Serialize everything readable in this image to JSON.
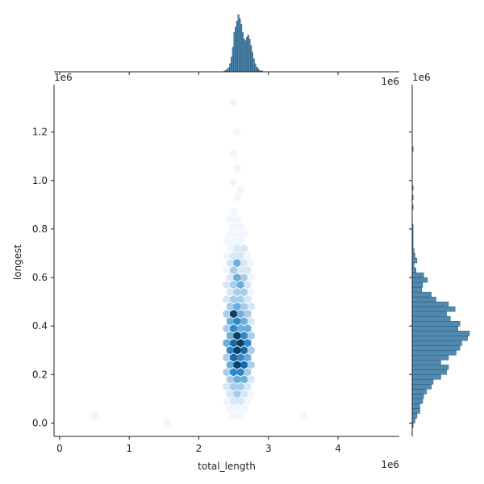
{
  "chart_data": {
    "type": "hexbin-joint",
    "xlabel": "total_length",
    "ylabel": "longest",
    "x_offset_label": "1e6",
    "y_offset_label": "1e6",
    "xlim": [
      -0.08,
      4.88
    ],
    "ylim": [
      -0.055,
      1.395
    ],
    "x_ticks": [
      0,
      1,
      2,
      3,
      4
    ],
    "x_tick_labels": [
      "0",
      "1",
      "2",
      "3",
      "4"
    ],
    "y_ticks": [
      0.0,
      0.2,
      0.4,
      0.6,
      0.8,
      1.0,
      1.2
    ],
    "y_tick_labels": [
      "0.0",
      "0.2",
      "0.4",
      "0.6",
      "0.8",
      "1.0",
      "1.2"
    ],
    "color": "#3274a1",
    "hex_colors": [
      "#f0f6fb",
      "#d6e7f5",
      "#a9cde9",
      "#6aaedb",
      "#2f88c8",
      "#1a68a6",
      "#0d3e63",
      "#061d30"
    ],
    "hexbins": [
      {
        "x": 2.5,
        "y": 0.03,
        "v": 1
      },
      {
        "x": 2.6,
        "y": 0.03,
        "v": 1
      },
      {
        "x": 2.55,
        "y": 0.06,
        "v": 1
      },
      {
        "x": 2.45,
        "y": 0.06,
        "v": 1
      },
      {
        "x": 2.65,
        "y": 0.06,
        "v": 1
      },
      {
        "x": 2.4,
        "y": 0.09,
        "v": 1
      },
      {
        "x": 2.5,
        "y": 0.09,
        "v": 2
      },
      {
        "x": 2.6,
        "y": 0.09,
        "v": 2
      },
      {
        "x": 2.7,
        "y": 0.09,
        "v": 1
      },
      {
        "x": 2.45,
        "y": 0.12,
        "v": 2
      },
      {
        "x": 2.55,
        "y": 0.12,
        "v": 3
      },
      {
        "x": 2.65,
        "y": 0.12,
        "v": 2
      },
      {
        "x": 2.75,
        "y": 0.12,
        "v": 1
      },
      {
        "x": 2.4,
        "y": 0.15,
        "v": 2
      },
      {
        "x": 2.5,
        "y": 0.15,
        "v": 3
      },
      {
        "x": 2.6,
        "y": 0.15,
        "v": 3
      },
      {
        "x": 2.7,
        "y": 0.15,
        "v": 2
      },
      {
        "x": 2.45,
        "y": 0.18,
        "v": 3
      },
      {
        "x": 2.55,
        "y": 0.18,
        "v": 4
      },
      {
        "x": 2.65,
        "y": 0.18,
        "v": 4
      },
      {
        "x": 2.75,
        "y": 0.18,
        "v": 2
      },
      {
        "x": 2.4,
        "y": 0.21,
        "v": 3
      },
      {
        "x": 2.5,
        "y": 0.21,
        "v": 5
      },
      {
        "x": 2.6,
        "y": 0.21,
        "v": 5
      },
      {
        "x": 2.7,
        "y": 0.21,
        "v": 3
      },
      {
        "x": 2.45,
        "y": 0.24,
        "v": 4
      },
      {
        "x": 2.55,
        "y": 0.24,
        "v": 7
      },
      {
        "x": 2.65,
        "y": 0.24,
        "v": 6
      },
      {
        "x": 2.75,
        "y": 0.24,
        "v": 3
      },
      {
        "x": 2.4,
        "y": 0.27,
        "v": 3
      },
      {
        "x": 2.5,
        "y": 0.27,
        "v": 6
      },
      {
        "x": 2.6,
        "y": 0.27,
        "v": 5
      },
      {
        "x": 2.7,
        "y": 0.27,
        "v": 4
      },
      {
        "x": 2.45,
        "y": 0.3,
        "v": 5
      },
      {
        "x": 2.55,
        "y": 0.3,
        "v": 7
      },
      {
        "x": 2.65,
        "y": 0.3,
        "v": 6
      },
      {
        "x": 2.75,
        "y": 0.3,
        "v": 3
      },
      {
        "x": 2.4,
        "y": 0.33,
        "v": 4
      },
      {
        "x": 2.5,
        "y": 0.33,
        "v": 6
      },
      {
        "x": 2.6,
        "y": 0.33,
        "v": 7
      },
      {
        "x": 2.7,
        "y": 0.33,
        "v": 5
      },
      {
        "x": 2.45,
        "y": 0.36,
        "v": 4
      },
      {
        "x": 2.55,
        "y": 0.36,
        "v": 7
      },
      {
        "x": 2.65,
        "y": 0.36,
        "v": 5
      },
      {
        "x": 2.75,
        "y": 0.36,
        "v": 3
      },
      {
        "x": 2.4,
        "y": 0.39,
        "v": 3
      },
      {
        "x": 2.5,
        "y": 0.39,
        "v": 5
      },
      {
        "x": 2.6,
        "y": 0.39,
        "v": 4
      },
      {
        "x": 2.7,
        "y": 0.39,
        "v": 4
      },
      {
        "x": 2.45,
        "y": 0.42,
        "v": 4
      },
      {
        "x": 2.55,
        "y": 0.42,
        "v": 5
      },
      {
        "x": 2.65,
        "y": 0.42,
        "v": 4
      },
      {
        "x": 2.75,
        "y": 0.42,
        "v": 2
      },
      {
        "x": 2.4,
        "y": 0.45,
        "v": 3
      },
      {
        "x": 2.5,
        "y": 0.45,
        "v": 7
      },
      {
        "x": 2.6,
        "y": 0.45,
        "v": 4
      },
      {
        "x": 2.7,
        "y": 0.45,
        "v": 3
      },
      {
        "x": 2.45,
        "y": 0.48,
        "v": 3
      },
      {
        "x": 2.55,
        "y": 0.48,
        "v": 4
      },
      {
        "x": 2.65,
        "y": 0.48,
        "v": 3
      },
      {
        "x": 2.75,
        "y": 0.48,
        "v": 2
      },
      {
        "x": 2.4,
        "y": 0.51,
        "v": 2
      },
      {
        "x": 2.5,
        "y": 0.51,
        "v": 3
      },
      {
        "x": 2.6,
        "y": 0.51,
        "v": 3
      },
      {
        "x": 2.7,
        "y": 0.51,
        "v": 2
      },
      {
        "x": 2.45,
        "y": 0.54,
        "v": 2
      },
      {
        "x": 2.55,
        "y": 0.54,
        "v": 3
      },
      {
        "x": 2.65,
        "y": 0.54,
        "v": 3
      },
      {
        "x": 2.75,
        "y": 0.54,
        "v": 1
      },
      {
        "x": 2.4,
        "y": 0.57,
        "v": 2
      },
      {
        "x": 2.5,
        "y": 0.57,
        "v": 3
      },
      {
        "x": 2.6,
        "y": 0.57,
        "v": 4
      },
      {
        "x": 2.7,
        "y": 0.57,
        "v": 2
      },
      {
        "x": 2.45,
        "y": 0.6,
        "v": 2
      },
      {
        "x": 2.55,
        "y": 0.6,
        "v": 4
      },
      {
        "x": 2.65,
        "y": 0.6,
        "v": 3
      },
      {
        "x": 2.75,
        "y": 0.6,
        "v": 1
      },
      {
        "x": 2.4,
        "y": 0.63,
        "v": 1
      },
      {
        "x": 2.5,
        "y": 0.63,
        "v": 3
      },
      {
        "x": 2.6,
        "y": 0.63,
        "v": 2
      },
      {
        "x": 2.7,
        "y": 0.63,
        "v": 2
      },
      {
        "x": 2.45,
        "y": 0.66,
        "v": 2
      },
      {
        "x": 2.55,
        "y": 0.66,
        "v": 4
      },
      {
        "x": 2.65,
        "y": 0.66,
        "v": 2
      },
      {
        "x": 2.75,
        "y": 0.66,
        "v": 1
      },
      {
        "x": 2.4,
        "y": 0.69,
        "v": 1
      },
      {
        "x": 2.5,
        "y": 0.69,
        "v": 2
      },
      {
        "x": 2.6,
        "y": 0.69,
        "v": 2
      },
      {
        "x": 2.7,
        "y": 0.69,
        "v": 1
      },
      {
        "x": 2.45,
        "y": 0.72,
        "v": 1
      },
      {
        "x": 2.55,
        "y": 0.72,
        "v": 2
      },
      {
        "x": 2.65,
        "y": 0.72,
        "v": 2
      },
      {
        "x": 2.5,
        "y": 0.75,
        "v": 1
      },
      {
        "x": 2.6,
        "y": 0.75,
        "v": 1
      },
      {
        "x": 2.4,
        "y": 0.75,
        "v": 1
      },
      {
        "x": 2.55,
        "y": 0.78,
        "v": 1
      },
      {
        "x": 2.65,
        "y": 0.78,
        "v": 1
      },
      {
        "x": 2.45,
        "y": 0.78,
        "v": 1
      },
      {
        "x": 2.5,
        "y": 0.81,
        "v": 1
      },
      {
        "x": 2.6,
        "y": 0.81,
        "v": 1
      },
      {
        "x": 2.55,
        "y": 0.84,
        "v": 1
      },
      {
        "x": 2.45,
        "y": 0.84,
        "v": 1
      },
      {
        "x": 2.5,
        "y": 0.87,
        "v": 1
      },
      {
        "x": 2.55,
        "y": 0.93,
        "v": 1
      },
      {
        "x": 2.6,
        "y": 0.96,
        "v": 1
      },
      {
        "x": 2.5,
        "y": 0.99,
        "v": 1
      },
      {
        "x": 2.55,
        "y": 1.05,
        "v": 1
      },
      {
        "x": 2.5,
        "y": 1.11,
        "v": 1
      },
      {
        "x": 2.55,
        "y": 1.2,
        "v": 1
      },
      {
        "x": 2.5,
        "y": 1.32,
        "v": 1
      },
      {
        "x": 0.5,
        "y": 0.03,
        "v": 1
      },
      {
        "x": 1.55,
        "y": 0.0,
        "v": 1
      },
      {
        "x": 3.5,
        "y": 0.03,
        "v": 1
      }
    ],
    "top_hist": {
      "bin_starts": [
        2.36,
        2.38,
        2.4,
        2.42,
        2.44,
        2.46,
        2.48,
        2.5,
        2.52,
        2.54,
        2.56,
        2.58,
        2.6,
        2.62,
        2.64,
        2.66,
        2.68,
        2.7,
        2.72,
        2.74,
        2.76,
        2.78,
        2.8,
        2.82,
        2.84,
        2.86,
        2.88,
        2.9
      ],
      "bin_width": 0.02,
      "counts": [
        1,
        2,
        3,
        5,
        10,
        18,
        30,
        48,
        55,
        62,
        70,
        65,
        58,
        48,
        40,
        38,
        42,
        45,
        40,
        32,
        24,
        16,
        10,
        6,
        4,
        2,
        1,
        1
      ]
    },
    "right_hist": {
      "bin_starts": [
        -0.02,
        0.0,
        0.02,
        0.04,
        0.06,
        0.08,
        0.1,
        0.12,
        0.14,
        0.16,
        0.18,
        0.2,
        0.22,
        0.24,
        0.26,
        0.28,
        0.3,
        0.32,
        0.34,
        0.36,
        0.38,
        0.4,
        0.42,
        0.44,
        0.46,
        0.48,
        0.5,
        0.52,
        0.54,
        0.56,
        0.58,
        0.6,
        0.62,
        0.64,
        0.66,
        0.68,
        0.7,
        0.72,
        0.74,
        0.76,
        0.78,
        0.8,
        0.88,
        0.92,
        0.96,
        1.12
      ],
      "bin_width": 0.02,
      "counts": [
        1,
        3,
        5,
        8,
        8,
        11,
        12,
        15,
        20,
        22,
        30,
        36,
        38,
        30,
        38,
        46,
        50,
        52,
        58,
        60,
        48,
        50,
        40,
        36,
        45,
        38,
        25,
        20,
        10,
        11,
        16,
        12,
        4,
        2,
        5,
        3,
        2,
        1,
        1,
        1,
        1,
        1,
        1,
        1,
        1,
        1
      ]
    }
  }
}
